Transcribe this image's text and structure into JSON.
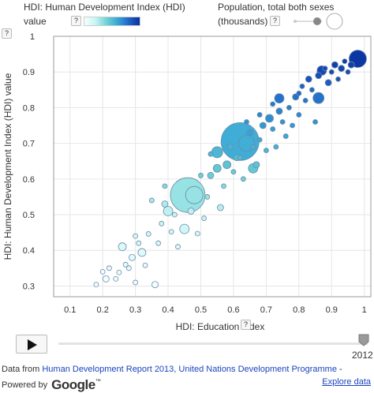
{
  "legend": {
    "color_title": "HDI: Human Development Index (HDI)",
    "color_value_label": "value",
    "size_title": "Population, total both sexes",
    "size_unit": "(thousands)",
    "help": "?"
  },
  "controls": {
    "year": "2012"
  },
  "footer": {
    "prefix": "Data from",
    "source_link": "Human Development Report 2013, United Nations Development Programme",
    "suffix": "-",
    "powered_by": "Powered by",
    "brand": "Google",
    "tm": "™",
    "explore": "Explore data"
  },
  "colors": {
    "low": "#f3ffff",
    "mid": "#5ccccc",
    "high": "#0a2fa0"
  },
  "chart_data": {
    "type": "scatter",
    "xlabel": "HDI: Education index",
    "ylabel": "HDI: Human Development Index (HDI) value",
    "xlim": [
      0.05,
      1.02
    ],
    "ylim": [
      0.27,
      1.0
    ],
    "xticks": [
      "0.1",
      "0.2",
      "0.3",
      "0.4",
      "0.5",
      "0.6",
      "0.7",
      "0.8",
      "0.9",
      "1"
    ],
    "yticks": [
      "0.3",
      "0.4",
      "0.5",
      "0.6",
      "0.7",
      "0.8",
      "0.9",
      "1"
    ],
    "grid": true,
    "points": [
      {
        "x": 0.46,
        "y": 0.555,
        "size": 22
      },
      {
        "x": 0.62,
        "y": 0.705,
        "size": 24
      },
      {
        "x": 0.48,
        "y": 0.555,
        "size": 11
      },
      {
        "x": 0.64,
        "y": 0.7,
        "size": 10
      },
      {
        "x": 0.98,
        "y": 0.937,
        "size": 11
      },
      {
        "x": 0.87,
        "y": 0.904,
        "size": 6
      },
      {
        "x": 0.86,
        "y": 0.827,
        "size": 7
      },
      {
        "x": 0.74,
        "y": 0.826,
        "size": 6
      },
      {
        "x": 0.55,
        "y": 0.675,
        "size": 7
      },
      {
        "x": 0.66,
        "y": 0.63,
        "size": 6
      },
      {
        "x": 0.45,
        "y": 0.46,
        "size": 6
      },
      {
        "x": 0.4,
        "y": 0.51,
        "size": 6
      },
      {
        "x": 0.26,
        "y": 0.41,
        "size": 5
      },
      {
        "x": 0.32,
        "y": 0.394,
        "size": 5
      },
      {
        "x": 0.29,
        "y": 0.38,
        "size": 4
      },
      {
        "x": 0.21,
        "y": 0.32,
        "size": 4
      },
      {
        "x": 0.18,
        "y": 0.304,
        "size": 3
      },
      {
        "x": 0.36,
        "y": 0.304,
        "size": 4
      },
      {
        "x": 0.34,
        "y": 0.446,
        "size": 3
      },
      {
        "x": 0.3,
        "y": 0.44,
        "size": 3
      },
      {
        "x": 0.37,
        "y": 0.42,
        "size": 3
      },
      {
        "x": 0.28,
        "y": 0.35,
        "size": 3
      },
      {
        "x": 0.25,
        "y": 0.338,
        "size": 3
      },
      {
        "x": 0.33,
        "y": 0.358,
        "size": 3
      },
      {
        "x": 0.24,
        "y": 0.32,
        "size": 3
      },
      {
        "x": 0.35,
        "y": 0.54,
        "size": 3
      },
      {
        "x": 0.38,
        "y": 0.475,
        "size": 3
      },
      {
        "x": 0.39,
        "y": 0.53,
        "size": 4
      },
      {
        "x": 0.41,
        "y": 0.452,
        "size": 3
      },
      {
        "x": 0.43,
        "y": 0.41,
        "size": 3
      },
      {
        "x": 0.49,
        "y": 0.447,
        "size": 3
      },
      {
        "x": 0.47,
        "y": 0.51,
        "size": 4
      },
      {
        "x": 0.51,
        "y": 0.49,
        "size": 3
      },
      {
        "x": 0.52,
        "y": 0.55,
        "size": 3
      },
      {
        "x": 0.53,
        "y": 0.61,
        "size": 4
      },
      {
        "x": 0.55,
        "y": 0.63,
        "size": 5
      },
      {
        "x": 0.57,
        "y": 0.58,
        "size": 3
      },
      {
        "x": 0.58,
        "y": 0.64,
        "size": 5
      },
      {
        "x": 0.56,
        "y": 0.52,
        "size": 4
      },
      {
        "x": 0.59,
        "y": 0.69,
        "size": 4
      },
      {
        "x": 0.6,
        "y": 0.62,
        "size": 3
      },
      {
        "x": 0.61,
        "y": 0.66,
        "size": 4
      },
      {
        "x": 0.63,
        "y": 0.6,
        "size": 3
      },
      {
        "x": 0.65,
        "y": 0.73,
        "size": 4
      },
      {
        "x": 0.66,
        "y": 0.69,
        "size": 3
      },
      {
        "x": 0.67,
        "y": 0.64,
        "size": 4
      },
      {
        "x": 0.68,
        "y": 0.71,
        "size": 3
      },
      {
        "x": 0.69,
        "y": 0.75,
        "size": 4
      },
      {
        "x": 0.7,
        "y": 0.68,
        "size": 3
      },
      {
        "x": 0.71,
        "y": 0.77,
        "size": 5
      },
      {
        "x": 0.72,
        "y": 0.74,
        "size": 3
      },
      {
        "x": 0.73,
        "y": 0.69,
        "size": 3
      },
      {
        "x": 0.74,
        "y": 0.79,
        "size": 4
      },
      {
        "x": 0.75,
        "y": 0.76,
        "size": 3
      },
      {
        "x": 0.76,
        "y": 0.72,
        "size": 3
      },
      {
        "x": 0.77,
        "y": 0.8,
        "size": 3
      },
      {
        "x": 0.78,
        "y": 0.75,
        "size": 3
      },
      {
        "x": 0.79,
        "y": 0.83,
        "size": 4
      },
      {
        "x": 0.8,
        "y": 0.78,
        "size": 3
      },
      {
        "x": 0.81,
        "y": 0.86,
        "size": 3
      },
      {
        "x": 0.82,
        "y": 0.82,
        "size": 3
      },
      {
        "x": 0.83,
        "y": 0.88,
        "size": 4
      },
      {
        "x": 0.84,
        "y": 0.85,
        "size": 3
      },
      {
        "x": 0.85,
        "y": 0.76,
        "size": 3
      },
      {
        "x": 0.86,
        "y": 0.89,
        "size": 4
      },
      {
        "x": 0.88,
        "y": 0.91,
        "size": 3
      },
      {
        "x": 0.89,
        "y": 0.87,
        "size": 4
      },
      {
        "x": 0.9,
        "y": 0.9,
        "size": 3
      },
      {
        "x": 0.91,
        "y": 0.92,
        "size": 4
      },
      {
        "x": 0.92,
        "y": 0.88,
        "size": 3
      },
      {
        "x": 0.93,
        "y": 0.91,
        "size": 4
      },
      {
        "x": 0.94,
        "y": 0.93,
        "size": 3
      },
      {
        "x": 0.95,
        "y": 0.9,
        "size": 3
      },
      {
        "x": 0.96,
        "y": 0.92,
        "size": 4
      },
      {
        "x": 0.8,
        "y": 0.84,
        "size": 3
      },
      {
        "x": 0.72,
        "y": 0.81,
        "size": 3
      },
      {
        "x": 0.68,
        "y": 0.78,
        "size": 3
      },
      {
        "x": 0.64,
        "y": 0.76,
        "size": 3
      },
      {
        "x": 0.62,
        "y": 0.66,
        "size": 3
      },
      {
        "x": 0.5,
        "y": 0.61,
        "size": 3
      },
      {
        "x": 0.53,
        "y": 0.67,
        "size": 3
      },
      {
        "x": 0.42,
        "y": 0.5,
        "size": 3
      },
      {
        "x": 0.39,
        "y": 0.58,
        "size": 3
      },
      {
        "x": 0.31,
        "y": 0.42,
        "size": 3
      },
      {
        "x": 0.22,
        "y": 0.35,
        "size": 3
      },
      {
        "x": 0.2,
        "y": 0.34,
        "size": 3
      },
      {
        "x": 0.27,
        "y": 0.36,
        "size": 3
      },
      {
        "x": 0.3,
        "y": 0.31,
        "size": 3
      }
    ]
  }
}
